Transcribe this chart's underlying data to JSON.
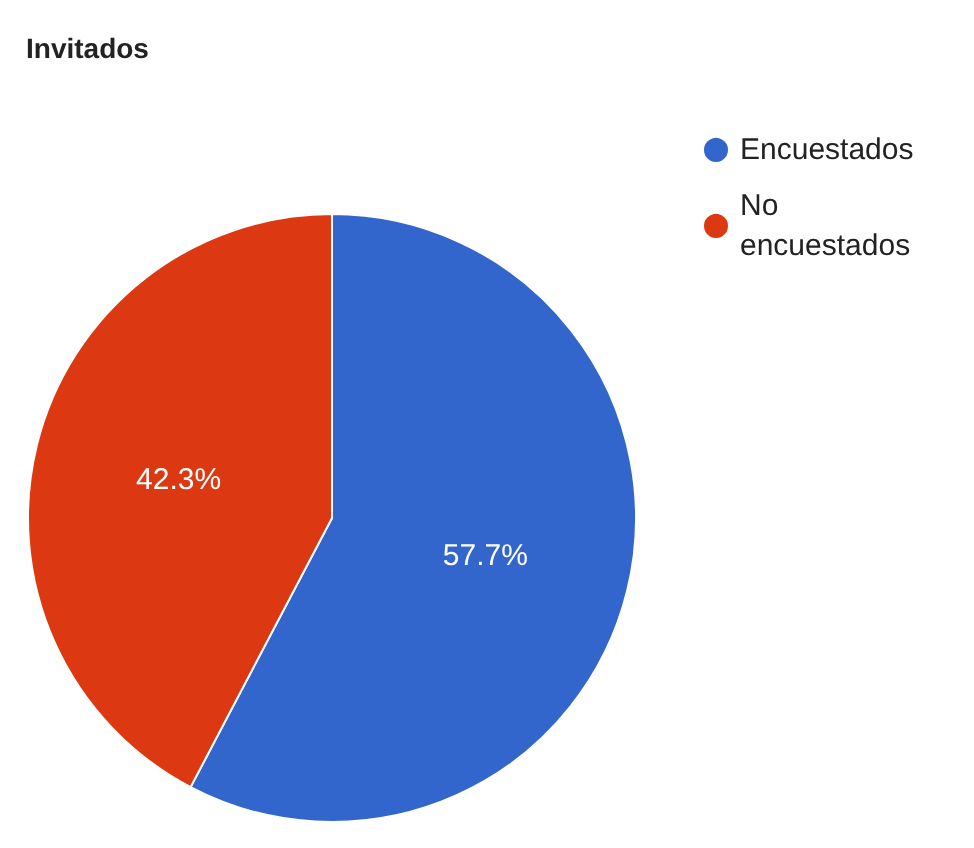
{
  "chart_data": {
    "type": "pie",
    "title": "Invitados",
    "categories": [
      "Encuestados",
      "No encuestados"
    ],
    "values": [
      57.7,
      42.3
    ],
    "colors": [
      "#3366cc",
      "#dc3912"
    ],
    "value_labels": [
      "57.7%",
      "42.3%"
    ],
    "legend": "top right"
  }
}
